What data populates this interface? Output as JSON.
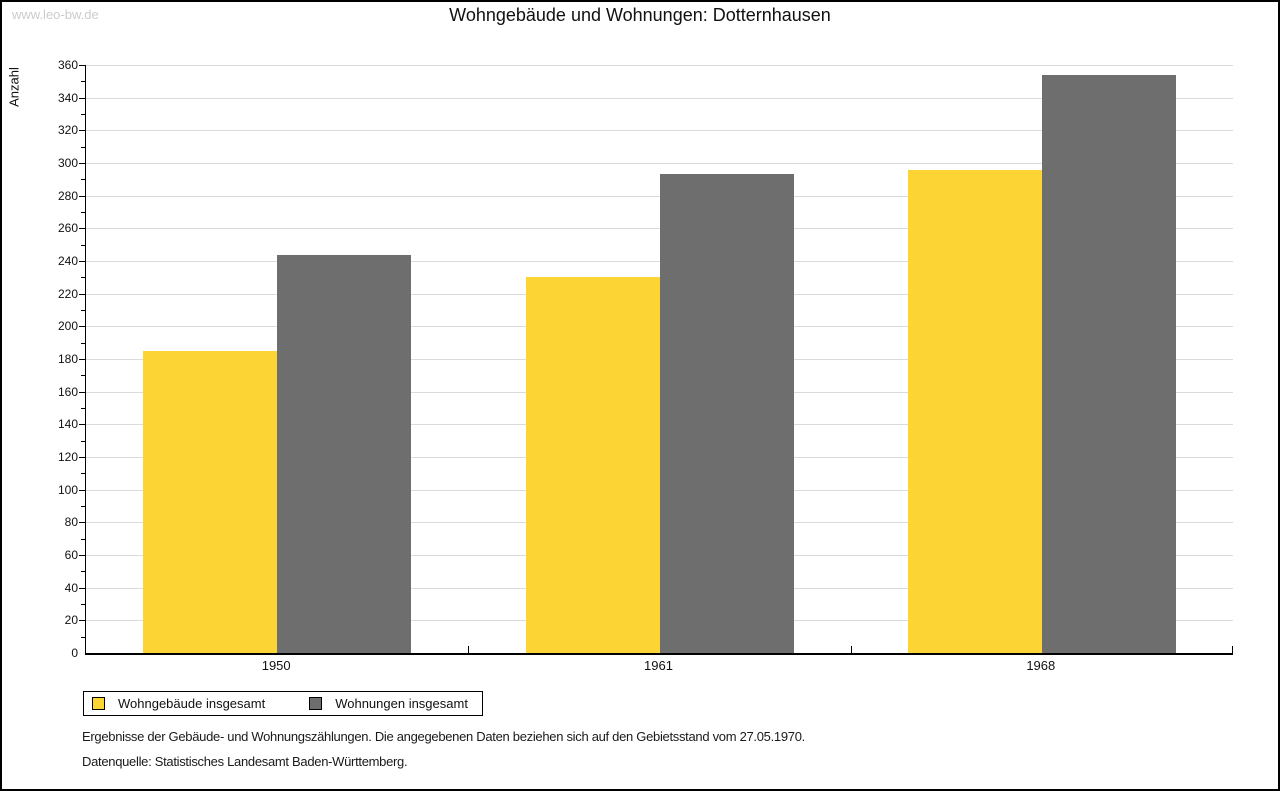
{
  "watermark": "www.leo-bw.de",
  "title": "Wohngebäude und Wohnungen: Dotternhausen",
  "chart_data": {
    "type": "bar",
    "title": "Wohngebäude und Wohnungen: Dotternhausen",
    "xlabel": "",
    "ylabel": "Anzahl",
    "ylim": [
      0,
      360
    ],
    "y_ticks": [
      0,
      20,
      40,
      60,
      80,
      100,
      120,
      140,
      160,
      180,
      200,
      220,
      240,
      260,
      280,
      300,
      320,
      340,
      360
    ],
    "y_minor_step": 10,
    "grid": true,
    "legend_position": "bottom-left",
    "categories": [
      "1950",
      "1961",
      "1968"
    ],
    "series": [
      {
        "name": "Wohngebäude insgesamt",
        "color": "#FCD535",
        "values": [
          185,
          230,
          296
        ]
      },
      {
        "name": "Wohnungen insgesamt",
        "color": "#6E6E6E",
        "values": [
          244,
          293,
          354
        ]
      }
    ]
  },
  "footnotes": {
    "line1": "Ergebnisse der Gebäude- und Wohnungszählungen. Die angegebenen Daten beziehen sich auf den Gebietsstand vom 27.05.1970.",
    "line2": "Datenquelle: Statistisches Landesamt Baden-Württemberg."
  }
}
